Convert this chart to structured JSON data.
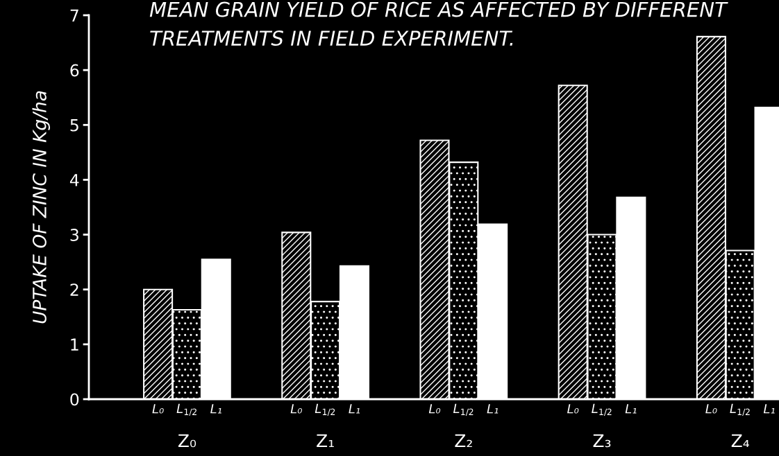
{
  "chart_data": {
    "type": "bar",
    "title": "MEAN GRAIN YIELD OF RICE AS AFFECTED BY DIFFERENT\nTREATMENTS IN FIELD EXPERIMENT.",
    "ylabel": "UPTAKE OF ZINC IN Kg/ha",
    "categories": [
      "Z₀",
      "Z₁",
      "Z₂",
      "Z₃",
      "Z₄"
    ],
    "series": [
      {
        "name": "L₀",
        "color": "#ffffff",
        "values": [
          2.0,
          3.04,
          4.72,
          5.72,
          6.61
        ]
      },
      {
        "name": "L$_{1/2}$",
        "color": "#ffffff",
        "values": [
          1.63,
          1.78,
          4.32,
          3.0,
          2.71
        ]
      },
      {
        "name": "L₁",
        "color": "#ffffff",
        "values": [
          2.55,
          2.43,
          3.19,
          3.68,
          5.32
        ]
      }
    ],
    "ylim": [
      0,
      7
    ],
    "yticks": [
      0,
      1,
      2,
      3,
      4,
      5,
      6,
      7
    ],
    "grid": false,
    "legend": false
  }
}
